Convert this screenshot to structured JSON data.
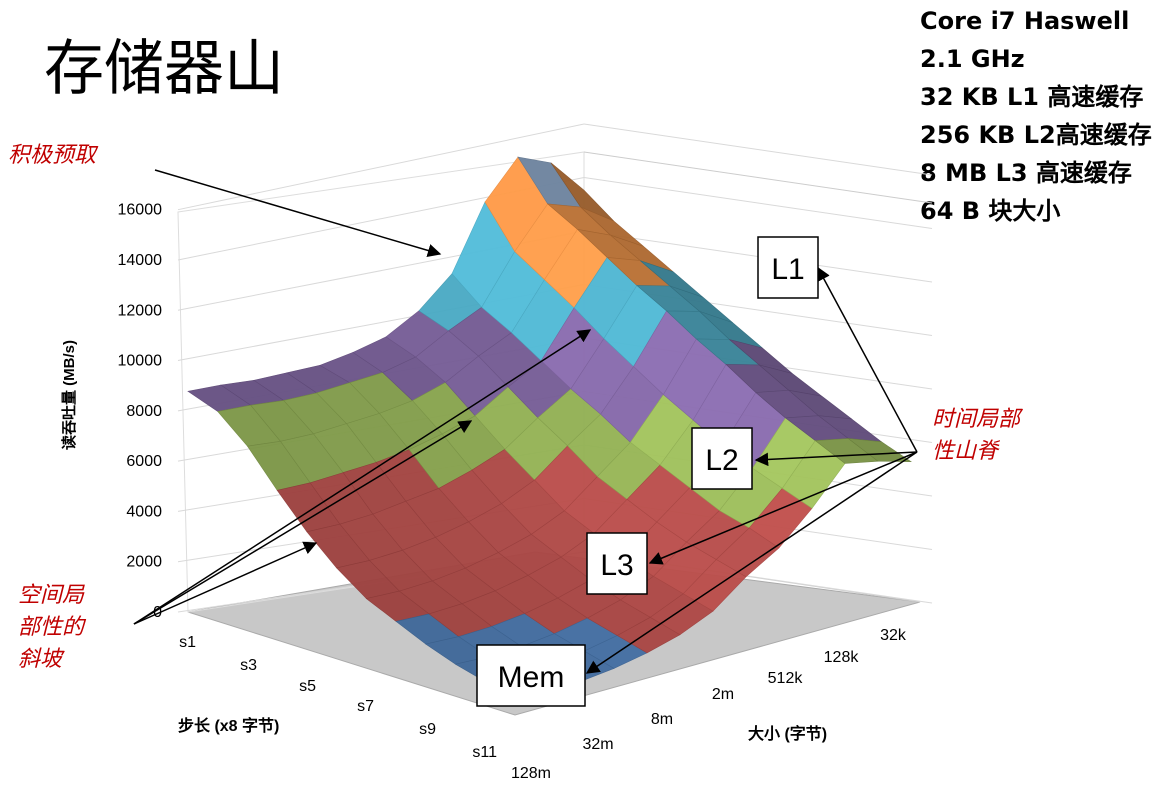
{
  "slide": {
    "title": "存储器山",
    "specs": [
      "Core i7 Haswell",
      "2.1 GHz",
      "32 KB L1 高速缓存",
      "256 KB L2高速缓存",
      "8 MB L3 高速缓存",
      "64 B 块大小"
    ],
    "annotations": {
      "prefetch": "积极预取",
      "spatial_line1": "空间局",
      "spatial_line2": "部性的",
      "spatial_line3": "斜坡",
      "temporal_line1": "时间局部",
      "temporal_line2": "性山脊"
    },
    "region_labels": {
      "l1": "L1",
      "l2": "L2",
      "l3": "L3",
      "mem": "Mem"
    },
    "colors": {
      "annotation": "#c00000",
      "floor": "#c8c8c8"
    }
  },
  "chart_data": {
    "type": "surface",
    "title": "",
    "zlabel": "读吞吐量 (MB/s)",
    "zlim": [
      0,
      16000
    ],
    "z_ticks": [
      0,
      2000,
      4000,
      6000,
      8000,
      10000,
      12000,
      14000,
      16000
    ],
    "z_tick_labels": [
      "0",
      "2000",
      "4000",
      "6000",
      "8000",
      "10000",
      "12000",
      "14000",
      "16000"
    ],
    "stride_label": "步长 (x8 字节)",
    "stride_ticks": [
      "s1",
      "s3",
      "s5",
      "s7",
      "s9",
      "s11"
    ],
    "size_label": "大小 (字节)",
    "size_ticks": [
      "128m",
      "32m",
      "8m",
      "2m",
      "512k",
      "128k",
      "32k"
    ],
    "color_bands": [
      {
        "range": [
          0,
          2000
        ],
        "color": "#4f81bd"
      },
      {
        "range": [
          2000,
          4000
        ],
        "color": "#c0504d"
      },
      {
        "range": [
          4000,
          6000
        ],
        "color": "#c0504d"
      },
      {
        "range": [
          6000,
          8000
        ],
        "color": "#9bbb59"
      },
      {
        "range": [
          8000,
          10000
        ],
        "color": "#8064a2"
      },
      {
        "range": [
          10000,
          12000
        ],
        "color": "#4bacc6"
      },
      {
        "range": [
          12000,
          14000
        ],
        "color": "#f79646"
      },
      {
        "range": [
          14000,
          16000
        ],
        "color": "#95b3d7"
      }
    ],
    "surface_grid": {
      "rows_stride": [
        "s1",
        "s2",
        "s3",
        "s4",
        "s5",
        "s6",
        "s7",
        "s8",
        "s9",
        "s10",
        "s11",
        "s12"
      ],
      "cols_size": [
        "32k",
        "64k",
        "128k",
        "256k",
        "512k",
        "1m",
        "2m",
        "4m",
        "8m",
        "16m",
        "32m",
        "64m",
        "128m"
      ],
      "values": [
        [
          13600,
          14800,
          15200,
          13700,
          11200,
          10000,
          9200,
          8800,
          8500,
          8400,
          8300,
          8300,
          8250
        ],
        [
          12800,
          13500,
          13800,
          12200,
          10300,
          9600,
          8800,
          8400,
          8200,
          8000,
          7900,
          7900,
          7850
        ],
        [
          12200,
          12800,
          13200,
          11500,
          9700,
          9000,
          8200,
          7700,
          7400,
          7200,
          7000,
          6900,
          6900
        ],
        [
          11600,
          12200,
          12500,
          10800,
          9000,
          8200,
          7300,
          6800,
          6400,
          6100,
          5900,
          5700,
          5600
        ],
        [
          11000,
          11600,
          11800,
          10000,
          8300,
          7400,
          6400,
          5800,
          5300,
          5000,
          4700,
          4500,
          4400
        ],
        [
          10400,
          11000,
          11200,
          9300,
          7700,
          6700,
          5600,
          4900,
          4400,
          4000,
          3700,
          3500,
          3400
        ],
        [
          9800,
          10300,
          10500,
          8600,
          7000,
          5900,
          4800,
          4100,
          3600,
          3200,
          2900,
          2700,
          2600
        ],
        [
          9200,
          9700,
          9900,
          8000,
          6500,
          5400,
          4300,
          3600,
          3100,
          2700,
          2400,
          2200,
          2100
        ],
        [
          8700,
          9100,
          9200,
          7400,
          6000,
          4900,
          3800,
          3100,
          2600,
          2200,
          1900,
          1700,
          1600
        ],
        [
          8200,
          8500,
          8600,
          6900,
          5500,
          4500,
          3400,
          2700,
          2200,
          1800,
          1500,
          1300,
          1200
        ],
        [
          7700,
          8000,
          8100,
          6500,
          5200,
          4200,
          3100,
          2400,
          1900,
          1500,
          1200,
          1000,
          900
        ],
        [
          7300,
          7500,
          7600,
          6100,
          4800,
          3900,
          2800,
          2100,
          1600,
          1200,
          900,
          800,
          700
        ]
      ]
    }
  }
}
